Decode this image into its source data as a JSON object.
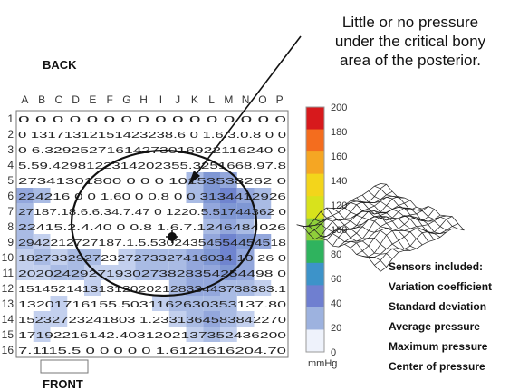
{
  "annotation": [
    "Little or no pressure",
    "under the critical bony",
    "area of the posterior."
  ],
  "back_label": "BACK",
  "front_label": "FRONT",
  "columns": [
    "A",
    "B",
    "C",
    "D",
    "E",
    "F",
    "G",
    "H",
    "I",
    "J",
    "K",
    "L",
    "M",
    "N",
    "O",
    "P"
  ],
  "rows": [
    "1",
    "2",
    "3",
    "4",
    "5",
    "6",
    "7",
    "8",
    "9",
    "10",
    "11",
    "12",
    "13",
    "14",
    "15",
    "16"
  ],
  "grid_text": [
    "0 0 0 0 0 0 0 0 0 0 0 0 0 0 0 0",
    "0 13171312151423238.6 0 1.6.3.0.8 0 0",
    "0 6.32925271614273016922116240 0",
    "5.59.4298122314202355.3251668.97.8",
    "27341301800 0 0 0 10153538262 0",
    "224216 0 0 1.60 0 0.8 0 0 3134412926",
    "27187.18.6.6.34.7.47 0 1220.5.51744362 0",
    "22415.2.4.40 0 0.8 1.6.7.1246484026",
    "2942212727187.1.5.53024354554454518",
    "18273329272327273327416034 10 26 0",
    "20202429271930273828354254498 0",
    "15145214131312020212833443738383.1",
    "13201716155.5031162630353137.80",
    "15232723241803 1.2331364583842270",
    "17192216142.4031202137352436200",
    "7.1115.5 0 0 0 0 0 1.6121616204.70"
  ],
  "scale_labels": [
    "200",
    "180",
    "160",
    "140",
    "120",
    "100",
    "80",
    "60",
    "40",
    "20",
    "0"
  ],
  "scale_colors": [
    "#d7191c",
    "#f46d1e",
    "#f5a623",
    "#f3d51b",
    "#d8e21c",
    "#8fcf3a",
    "#2fb35e",
    "#3d93c9",
    "#6f7fd0",
    "#9db2df",
    "#eef2fb"
  ],
  "unit": "mmHg",
  "legend": [
    "Sensors included:",
    "Variation coefficient",
    "Standard deviation",
    "Average pressure",
    "Maximum pressure",
    "Center of pressure"
  ],
  "pressure_color": "#7f97d4",
  "heat_cells": [
    [
      4,
      10,
      "#a9bbe4"
    ],
    [
      4,
      11,
      "#7f97d4"
    ],
    [
      4,
      12,
      "#93a7dc"
    ],
    [
      5,
      0,
      "#93a7dc"
    ],
    [
      5,
      1,
      "#a9bbe4"
    ],
    [
      5,
      10,
      "#a9bbe4"
    ],
    [
      5,
      11,
      "#7f97d4"
    ],
    [
      5,
      12,
      "#6f84cf"
    ],
    [
      5,
      13,
      "#93a7dc"
    ],
    [
      5,
      14,
      "#a9bbe4"
    ],
    [
      6,
      0,
      "#a9bbe4"
    ],
    [
      6,
      11,
      "#93a7dc"
    ],
    [
      6,
      12,
      "#7f97d4"
    ],
    [
      6,
      13,
      "#7f97d4"
    ],
    [
      6,
      14,
      "#a9bbe4"
    ],
    [
      7,
      0,
      "#a9bbe4"
    ],
    [
      7,
      11,
      "#a9bbe4"
    ],
    [
      7,
      12,
      "#93a7dc"
    ],
    [
      7,
      13,
      "#a9bbe4"
    ],
    [
      8,
      0,
      "#a9bbe4"
    ],
    [
      8,
      1,
      "#c3d0ee"
    ],
    [
      8,
      11,
      "#93a7dc"
    ],
    [
      8,
      12,
      "#6f84cf"
    ],
    [
      8,
      13,
      "#7f97d4"
    ],
    [
      8,
      14,
      "#93a7dc"
    ],
    [
      9,
      0,
      "#c3d0ee"
    ],
    [
      9,
      1,
      "#a9bbe4"
    ],
    [
      9,
      2,
      "#c3d0ee"
    ],
    [
      9,
      3,
      "#a9bbe4"
    ],
    [
      9,
      4,
      "#a9bbe4"
    ],
    [
      9,
      6,
      "#c3d0ee"
    ],
    [
      9,
      7,
      "#a9bbe4"
    ],
    [
      9,
      8,
      "#a9bbe4"
    ],
    [
      9,
      9,
      "#a9bbe4"
    ],
    [
      9,
      10,
      "#93a7dc"
    ],
    [
      9,
      11,
      "#7f97d4"
    ],
    [
      9,
      12,
      "#6f84cf"
    ],
    [
      9,
      13,
      "#93a7dc"
    ],
    [
      10,
      0,
      "#c3d0ee"
    ],
    [
      10,
      1,
      "#c3d0ee"
    ],
    [
      10,
      2,
      "#a9bbe4"
    ],
    [
      10,
      3,
      "#a9bbe4"
    ],
    [
      10,
      4,
      "#c3d0ee"
    ],
    [
      10,
      5,
      "#c3d0ee"
    ],
    [
      10,
      6,
      "#c3d0ee"
    ],
    [
      10,
      7,
      "#a9bbe4"
    ],
    [
      10,
      8,
      "#a9bbe4"
    ],
    [
      10,
      9,
      "#a9bbe4"
    ],
    [
      10,
      10,
      "#93a7dc"
    ],
    [
      10,
      11,
      "#93a7dc"
    ],
    [
      10,
      12,
      "#7f97d4"
    ],
    [
      10,
      13,
      "#93a7dc"
    ],
    [
      11,
      4,
      "#c3d0ee"
    ],
    [
      11,
      9,
      "#a9bbe4"
    ],
    [
      11,
      10,
      "#93a7dc"
    ],
    [
      11,
      11,
      "#93a7dc"
    ],
    [
      11,
      12,
      "#a9bbe4"
    ],
    [
      11,
      13,
      "#a9bbe4"
    ],
    [
      11,
      14,
      "#c3d0ee"
    ],
    [
      12,
      2,
      "#c3d0ee"
    ],
    [
      12,
      8,
      "#c3d0ee"
    ],
    [
      12,
      9,
      "#a9bbe4"
    ],
    [
      12,
      10,
      "#a9bbe4"
    ],
    [
      12,
      11,
      "#a9bbe4"
    ],
    [
      12,
      12,
      "#a9bbe4"
    ],
    [
      13,
      1,
      "#c3d0ee"
    ],
    [
      13,
      2,
      "#c3d0ee"
    ],
    [
      13,
      9,
      "#c3d0ee"
    ],
    [
      13,
      10,
      "#a9bbe4"
    ],
    [
      13,
      11,
      "#93a7dc"
    ],
    [
      13,
      12,
      "#a9bbe4"
    ],
    [
      13,
      13,
      "#c3d0ee"
    ],
    [
      14,
      1,
      "#c3d0ee"
    ],
    [
      14,
      10,
      "#c3d0ee"
    ],
    [
      14,
      11,
      "#a9bbe4"
    ],
    [
      14,
      12,
      "#c3d0ee"
    ]
  ]
}
